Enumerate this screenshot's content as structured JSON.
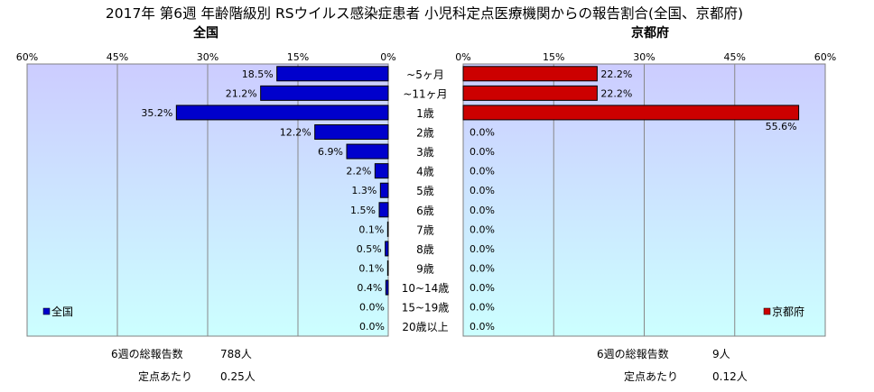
{
  "title": "2017年 第6週 年齢階級別 RSウイルス感染症患者 小児科定点医療機関からの報告割合(全国、京都府)",
  "colors": {
    "plot_bg": "#ccccff",
    "plot_bg_bottom": "#ccffff",
    "national_bar": "#0000cc",
    "kyoto_bar": "#cc0000",
    "grid": "#888888"
  },
  "chart_data": [
    {
      "type": "bar",
      "orientation": "horizontal",
      "panel_title": "全国",
      "x_direction": "reversed",
      "xlim": [
        0,
        60
      ],
      "x_ticks": [
        "60%",
        "45%",
        "30%",
        "15%",
        "0%"
      ],
      "categories": [
        "~5ヶ月",
        "~11ヶ月",
        "1歳",
        "2歳",
        "3歳",
        "4歳",
        "5歳",
        "6歳",
        "7歳",
        "8歳",
        "9歳",
        "10~14歳",
        "15~19歳",
        "20歳以上"
      ],
      "series": [
        {
          "name": "全国",
          "values": [
            18.5,
            21.2,
            35.2,
            12.2,
            6.9,
            2.2,
            1.3,
            1.5,
            0.1,
            0.5,
            0.1,
            0.4,
            0.0,
            0.0
          ],
          "labels": [
            "18.5%",
            "21.2%",
            "35.2%",
            "12.2%",
            "6.9%",
            "2.2%",
            "1.3%",
            "1.5%",
            "0.1%",
            "0.5%",
            "0.1%",
            "0.4%",
            "0.0%",
            "0.0%"
          ]
        }
      ],
      "legend": "bottom-left",
      "grid": true,
      "footer": [
        {
          "label": "6週の総報告数",
          "value": "788人"
        },
        {
          "label": "定点あたり",
          "value": "0.25人"
        }
      ]
    },
    {
      "type": "bar",
      "orientation": "horizontal",
      "panel_title": "京都府",
      "xlim": [
        0,
        60
      ],
      "x_ticks": [
        "0%",
        "15%",
        "30%",
        "45%",
        "60%"
      ],
      "categories": [
        "~5ヶ月",
        "~11ヶ月",
        "1歳",
        "2歳",
        "3歳",
        "4歳",
        "5歳",
        "6歳",
        "7歳",
        "8歳",
        "9歳",
        "10~14歳",
        "15~19歳",
        "20歳以上"
      ],
      "series": [
        {
          "name": "京都府",
          "values": [
            22.2,
            22.2,
            55.6,
            0.0,
            0.0,
            0.0,
            0.0,
            0.0,
            0.0,
            0.0,
            0.0,
            0.0,
            0.0,
            0.0
          ],
          "labels": [
            "22.2%",
            "22.2%",
            "55.6%",
            "0.0%",
            "0.0%",
            "0.0%",
            "0.0%",
            "0.0%",
            "0.0%",
            "0.0%",
            "0.0%",
            "0.0%",
            "0.0%",
            "0.0%"
          ]
        }
      ],
      "legend": "bottom-right",
      "grid": true,
      "footer": [
        {
          "label": "6週の総報告数",
          "value": "9人"
        },
        {
          "label": "定点あたり",
          "value": "0.12人"
        }
      ]
    }
  ]
}
